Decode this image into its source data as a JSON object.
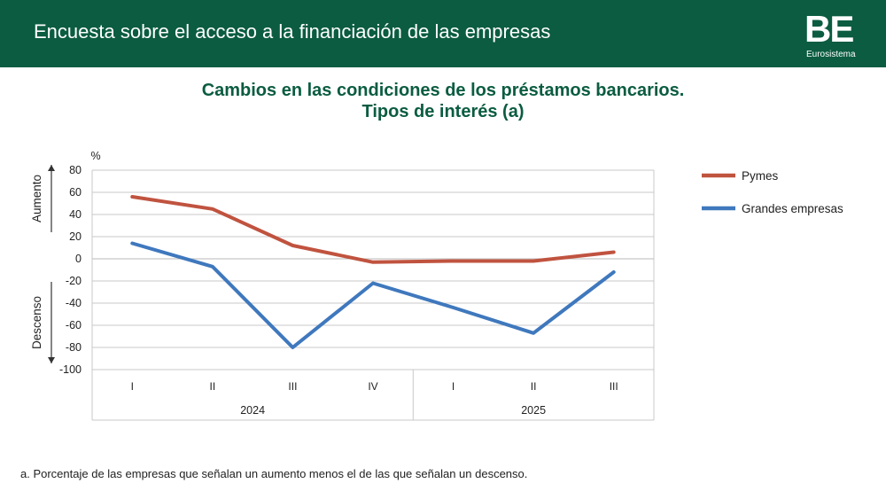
{
  "header": {
    "title": "Encuesta sobre el acceso a la financiación de las empresas",
    "logo_mark": "BE",
    "logo_text": "Eurosistema"
  },
  "footnote": "a. Porcentaje de las empresas que señalan un aumento menos el de las que señalan un descenso.",
  "colors": {
    "header_bg": "#0b5c41",
    "title": "#0b5c41",
    "pymes": "#c0533f",
    "grandes": "#3f78bd",
    "grid": "#c8c8c8"
  },
  "chart_data": {
    "type": "line",
    "title": "Cambios en las condiciones de los préstamos bancarios.",
    "subtitle": "Tipos de interés (a)",
    "ylabel": "%",
    "ylim": [
      -100,
      80
    ],
    "yticks": [
      80,
      60,
      40,
      20,
      0,
      -20,
      -40,
      -60,
      -80,
      -100
    ],
    "categories": [
      "I",
      "II",
      "III",
      "IV",
      "I",
      "II",
      "III"
    ],
    "groups": [
      {
        "label": "2024",
        "count": 4
      },
      {
        "label": "2025",
        "count": 3
      }
    ],
    "side_labels": {
      "up": "Aumento",
      "down": "Descenso"
    },
    "series": [
      {
        "name": "Pymes",
        "color": "#c0533f",
        "values": [
          56,
          45,
          12,
          -3,
          -2,
          -2,
          6
        ]
      },
      {
        "name": "Grandes empresas",
        "color": "#3f78bd",
        "values": [
          14,
          -7,
          -80,
          -22,
          -44,
          -67,
          -12
        ]
      }
    ],
    "legend": "right"
  }
}
